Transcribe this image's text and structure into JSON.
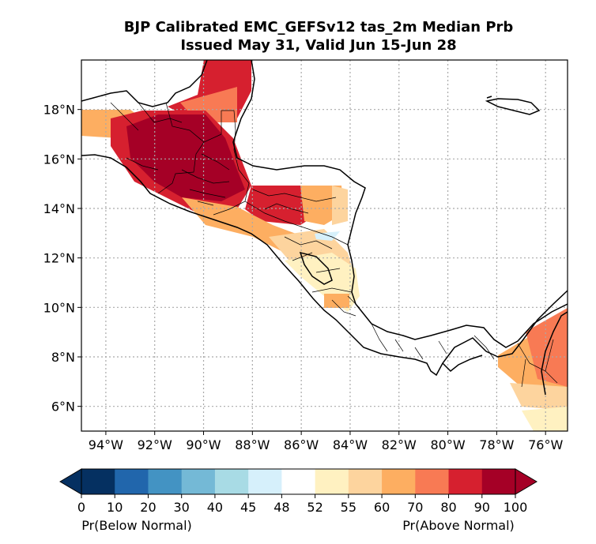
{
  "title": {
    "line1": "BJP Calibrated EMC_GEFSv12 tas_2m Median Prb",
    "line2": "Issued May 31, Valid Jun 15-Jun 28"
  },
  "map": {
    "lon_range": [
      -95,
      -75.1
    ],
    "lat_range": [
      5,
      20
    ],
    "lon_ticks": [
      -94,
      -92,
      -90,
      -88,
      -86,
      -84,
      -82,
      -80,
      -78,
      -76
    ],
    "lon_labels": [
      "94°W",
      "92°W",
      "90°W",
      "88°W",
      "86°W",
      "84°W",
      "82°W",
      "80°W",
      "78°W",
      "76°W"
    ],
    "lat_ticks": [
      6,
      8,
      10,
      12,
      14,
      16,
      18
    ],
    "lat_labels": [
      "6°N",
      "8°N",
      "10°N",
      "12°N",
      "14°N",
      "16°N",
      "18°N"
    ],
    "gridlines": "dotted"
  },
  "colorbar": {
    "ticks": [
      "0",
      "10",
      "20",
      "30",
      "40",
      "45",
      "48",
      "52",
      "55",
      "60",
      "70",
      "80",
      "90",
      "100"
    ],
    "colors": [
      "#053061",
      "#2166ac",
      "#4393c3",
      "#74b9d6",
      "#a8dbe5",
      "#d6f0fb",
      "#ffffff",
      "#fff1c1",
      "#fdd49e",
      "#fdae61",
      "#f87a54",
      "#d6202f",
      "#a50026"
    ],
    "label_left": "Pr(Below Normal)",
    "label_right": "Pr(Above Normal)"
  }
}
